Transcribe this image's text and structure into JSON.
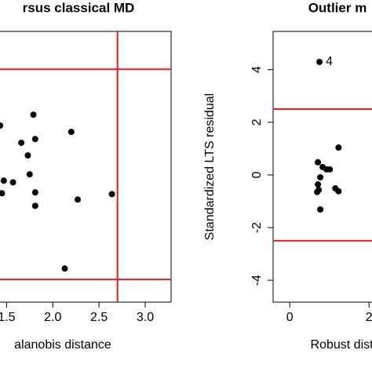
{
  "chart_data": [
    {
      "type": "scatter",
      "title": "rsus classical MD",
      "x_label": "alanobis distance",
      "x": [
        1.43,
        1.79,
        1.66,
        1.81,
        2.2,
        1.73,
        1.75,
        1.47,
        1.57,
        1.45,
        1.81,
        1.81,
        2.27,
        2.64,
        2.13
      ],
      "y": [
        1.16,
        1.42,
        0.75,
        0.84,
        1.01,
        0.45,
        0.0,
        -0.15,
        -0.19,
        -0.45,
        -0.43,
        -0.75,
        -0.6,
        -0.47,
        -2.24
      ],
      "color": "#000000",
      "xlim": [
        1.2,
        3.28
      ],
      "ylim": [
        -3.04,
        3.4
      ],
      "xticks": [
        1.5,
        {
          "value": 2.0,
          "label": "2.0"
        },
        2.5,
        {
          "value": 3.0,
          "label": "3.0"
        }
      ],
      "hlines": [
        -2.5,
        2.5
      ],
      "vlines": [
        2.7
      ],
      "line_color": "#e0201b"
    },
    {
      "type": "scatter",
      "title": "Outlier m",
      "x_label": "Robust dista",
      "y_label": "Standardized LTS residual",
      "x": [
        0.75,
        0.71,
        0.83,
        0.93,
        1.01,
        1.23,
        0.77,
        0.71,
        0.73,
        0.69,
        0.77,
        1.15,
        1.23
      ],
      "y": [
        4.29,
        0.48,
        0.3,
        0.21,
        0.21,
        1.04,
        -0.09,
        -0.36,
        -0.57,
        -0.65,
        -1.31,
        -0.51,
        -0.62
      ],
      "color": "#000000",
      "annotations": [
        {
          "text": "4",
          "point": 0
        }
      ],
      "xlim": [
        -0.42,
        3.5
      ],
      "ylim": [
        -4.83,
        5.45
      ],
      "xticks": [
        0,
        2
      ],
      "yticks": [
        -4,
        -2,
        0,
        2,
        4
      ],
      "hlines": [
        -2.5,
        2.5
      ],
      "line_color": "#e0201b"
    }
  ]
}
